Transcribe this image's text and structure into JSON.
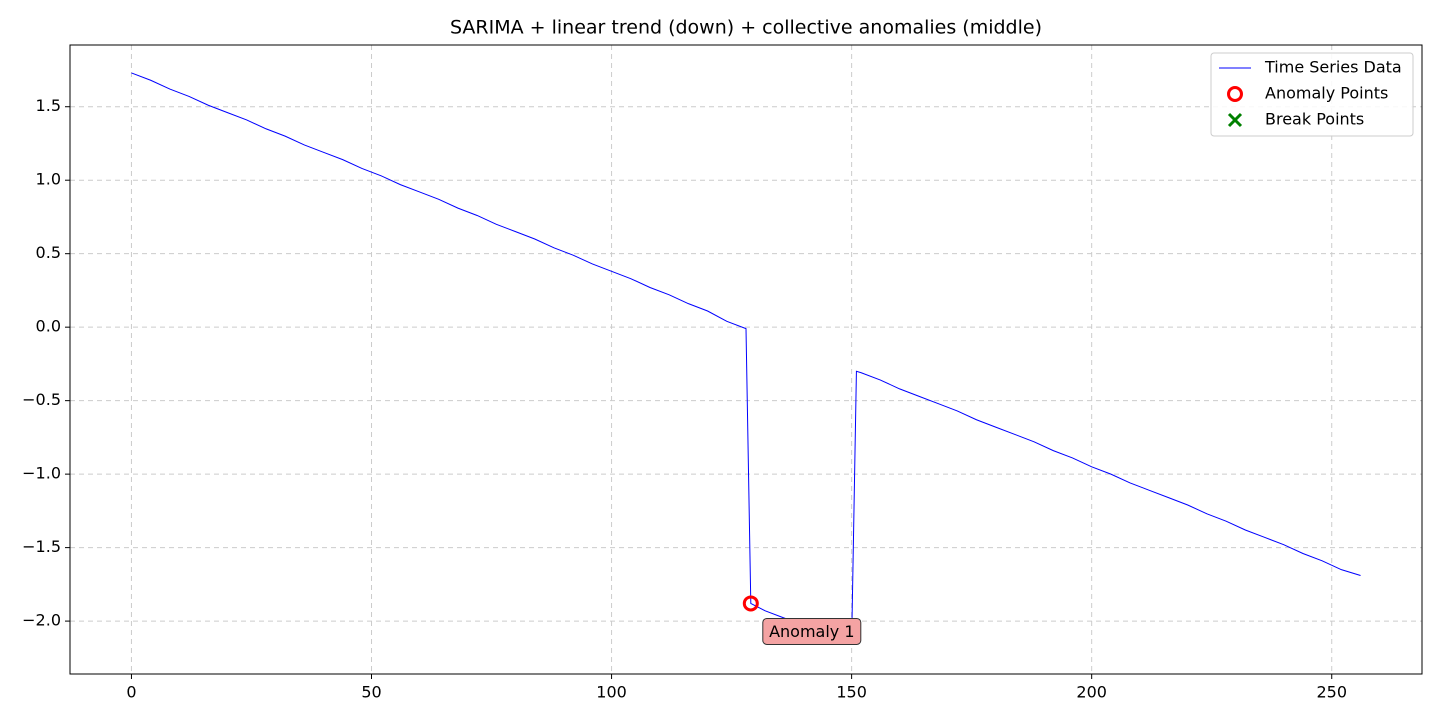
{
  "chart_data": {
    "type": "line",
    "title": "SARIMA + linear trend (down) + collective anomalies (middle)",
    "series": [
      {
        "name": "Time Series Data",
        "color": "#0000ff",
        "x": [
          0,
          4,
          8,
          12,
          16,
          20,
          24,
          28,
          32,
          36,
          40,
          44,
          48,
          52,
          56,
          60,
          64,
          68,
          72,
          76,
          80,
          84,
          88,
          92,
          96,
          100,
          104,
          108,
          112,
          116,
          120,
          124,
          128,
          129,
          132,
          136,
          140,
          144,
          148,
          150,
          151,
          152,
          156,
          160,
          164,
          168,
          172,
          176,
          180,
          184,
          188,
          192,
          196,
          200,
          204,
          208,
          212,
          216,
          220,
          224,
          228,
          232,
          236,
          240,
          244,
          248,
          252,
          256
        ],
        "values": [
          1.73,
          1.68,
          1.62,
          1.57,
          1.51,
          1.46,
          1.41,
          1.35,
          1.3,
          1.24,
          1.19,
          1.14,
          1.08,
          1.03,
          0.97,
          0.92,
          0.87,
          0.81,
          0.76,
          0.7,
          0.65,
          0.6,
          0.54,
          0.49,
          0.43,
          0.38,
          0.33,
          0.27,
          0.22,
          0.16,
          0.11,
          0.04,
          -0.01,
          -1.88,
          -1.93,
          -1.98,
          -2.03,
          -2.07,
          -2.12,
          -2.15,
          -0.3,
          -0.31,
          -0.36,
          -0.42,
          -0.47,
          -0.52,
          -0.57,
          -0.63,
          -0.68,
          -0.73,
          -0.78,
          -0.84,
          -0.89,
          -0.95,
          -1.0,
          -1.06,
          -1.11,
          -1.16,
          -1.21,
          -1.27,
          -1.32,
          -1.38,
          -1.43,
          -1.48,
          -1.54,
          -1.59,
          -1.65,
          -1.69
        ]
      },
      {
        "name": "Anomaly Points",
        "color": "#ff0000",
        "marker": "circle",
        "x": [
          129
        ],
        "values": [
          -1.88
        ]
      },
      {
        "name": "Break Points",
        "color": "#008000",
        "marker": "x",
        "x": [],
        "values": []
      }
    ],
    "annotation": "Anomaly 1",
    "xlim": [
      -12.8,
      268.8
    ],
    "xticks": [
      0,
      50,
      100,
      150,
      200,
      250
    ],
    "ylim": [
      -2.36,
      1.92
    ],
    "yticks": [
      {
        "value": -2.0,
        "label": "−2.0"
      },
      {
        "value": -1.5,
        "label": "−1.5"
      },
      {
        "value": -1.0,
        "label": "−1.0"
      },
      {
        "value": -0.5,
        "label": "−0.5"
      },
      {
        "value": 0.0,
        "label": "0.0"
      },
      {
        "value": 0.5,
        "label": "0.5"
      },
      {
        "value": 1.0,
        "label": "1.0"
      },
      {
        "value": 1.5,
        "label": "1.5"
      }
    ],
    "grid": true,
    "legend": "upper right"
  }
}
